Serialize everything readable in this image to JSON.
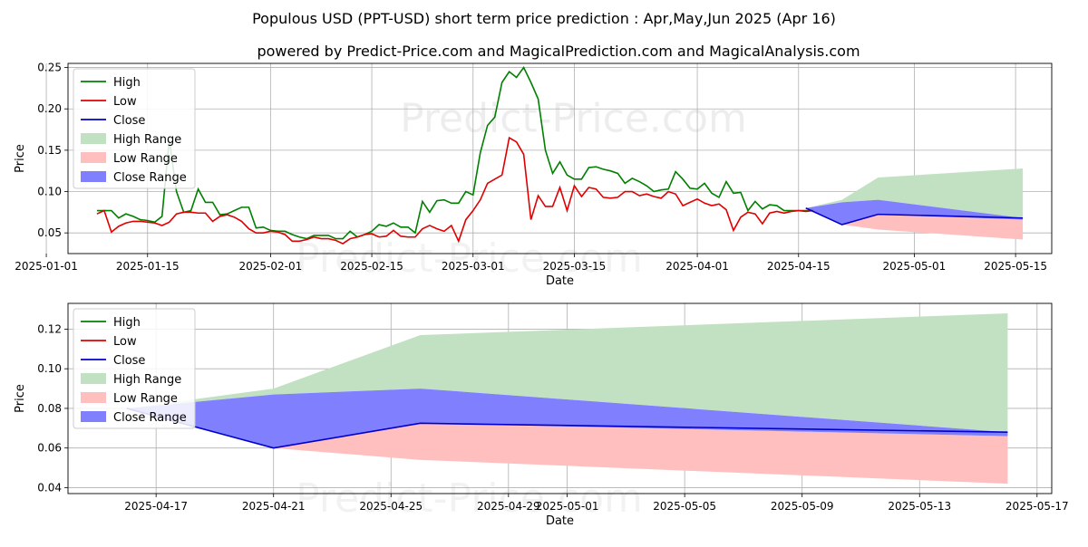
{
  "title": "Populous USD (PPT-USD) short term price prediction : Apr,May,Jun 2025 (Apr 16)",
  "subtitle": "powered by Predict-Price.com and MagicalPrediction.com and MagicalAnalysis.com",
  "watermark": "Predict-Price.com",
  "colors": {
    "high": "#008000",
    "low": "#e00000",
    "close": "#0000cc",
    "high_range": "#c2e1c2",
    "low_range": "#ffbfbf",
    "close_range": "#8080ff"
  },
  "chart_data": [
    {
      "type": "line",
      "xlabel": "Date",
      "ylabel": "Price",
      "grid": true,
      "legend_position": "upper-left",
      "legend": [
        "High",
        "Low",
        "Close",
        "High Range",
        "Low Range",
        "Close Range"
      ],
      "xlim": [
        "2025-01-04",
        "2025-05-20"
      ],
      "ylim": [
        0.025,
        0.255
      ],
      "x_ticks": [
        "2025-01-01",
        "2025-01-15",
        "2025-02-01",
        "2025-02-15",
        "2025-03-01",
        "2025-03-15",
        "2025-04-01",
        "2025-04-15",
        "2025-05-01",
        "2025-05-15"
      ],
      "y_ticks": [
        0.05,
        0.1,
        0.15,
        0.2,
        0.25
      ],
      "history_start": "2025-01-08",
      "history_high": [
        0.077,
        0.077,
        0.077,
        0.068,
        0.073,
        0.07,
        0.066,
        0.065,
        0.063,
        0.07,
        0.163,
        0.1,
        0.075,
        0.077,
        0.103,
        0.087,
        0.087,
        0.072,
        0.073,
        0.077,
        0.081,
        0.081,
        0.056,
        0.057,
        0.053,
        0.052,
        0.052,
        0.048,
        0.045,
        0.043,
        0.047,
        0.047,
        0.047,
        0.043,
        0.043,
        0.052,
        0.045,
        0.048,
        0.052,
        0.06,
        0.058,
        0.062,
        0.057,
        0.057,
        0.05,
        0.088,
        0.075,
        0.089,
        0.09,
        0.086,
        0.086,
        0.1,
        0.096,
        0.147,
        0.18,
        0.19,
        0.232,
        0.245,
        0.238,
        0.25,
        0.232,
        0.212,
        0.15,
        0.122,
        0.136,
        0.12,
        0.115,
        0.115,
        0.129,
        0.13,
        0.127,
        0.125,
        0.122,
        0.11,
        0.116,
        0.112,
        0.107,
        0.1,
        0.102,
        0.103,
        0.124,
        0.115,
        0.104,
        0.103,
        0.11,
        0.098,
        0.093,
        0.112,
        0.098,
        0.099,
        0.077,
        0.088,
        0.079,
        0.084,
        0.083,
        0.077,
        0.077,
        0.077,
        0.077,
        0.077
      ],
      "history_low": [
        0.073,
        0.077,
        0.051,
        0.058,
        0.062,
        0.064,
        0.064,
        0.063,
        0.062,
        0.059,
        0.063,
        0.073,
        0.075,
        0.075,
        0.074,
        0.074,
        0.064,
        0.07,
        0.072,
        0.069,
        0.064,
        0.055,
        0.05,
        0.05,
        0.052,
        0.051,
        0.048,
        0.04,
        0.04,
        0.042,
        0.045,
        0.043,
        0.043,
        0.041,
        0.037,
        0.043,
        0.045,
        0.048,
        0.049,
        0.045,
        0.046,
        0.053,
        0.046,
        0.045,
        0.045,
        0.055,
        0.059,
        0.055,
        0.052,
        0.059,
        0.04,
        0.066,
        0.077,
        0.09,
        0.11,
        0.115,
        0.12,
        0.165,
        0.16,
        0.145,
        0.066,
        0.095,
        0.082,
        0.082,
        0.105,
        0.077,
        0.107,
        0.094,
        0.105,
        0.103,
        0.093,
        0.092,
        0.093,
        0.1,
        0.1,
        0.095,
        0.097,
        0.094,
        0.092,
        0.1,
        0.097,
        0.083,
        0.087,
        0.091,
        0.086,
        0.083,
        0.085,
        0.078,
        0.053,
        0.069,
        0.075,
        0.073,
        0.061,
        0.074,
        0.076,
        0.074,
        0.076,
        0.077,
        0.076,
        0.077
      ]
    },
    {
      "type": "area",
      "xlabel": "Date",
      "ylabel": "Price",
      "grid": true,
      "legend_position": "upper-left",
      "legend": [
        "High",
        "Low",
        "Close",
        "High Range",
        "Low Range",
        "Close Range"
      ],
      "xlim": [
        "2025-04-14",
        "2025-05-17 12:00"
      ],
      "ylim": [
        0.037,
        0.133
      ],
      "x_ticks": [
        "2025-04-17",
        "2025-04-21",
        "2025-04-25",
        "2025-04-29",
        "2025-05-01",
        "2025-05-05",
        "2025-05-09",
        "2025-05-13",
        "2025-05-17"
      ],
      "y_ticks": [
        0.04,
        0.06,
        0.08,
        0.1,
        0.12
      ],
      "forecast": {
        "dates": [
          "2025-04-16",
          "2025-04-21",
          "2025-04-26",
          "2025-05-16"
        ],
        "close": [
          0.08,
          0.06,
          0.0725,
          0.068
        ],
        "high_range_upper": [
          0.08,
          0.09,
          0.117,
          0.128
        ],
        "high_range_lower": [
          0.08,
          0.087,
          0.09,
          0.068
        ],
        "low_range_upper": [
          0.08,
          0.062,
          0.0725,
          0.066
        ],
        "low_range_lower": [
          0.08,
          0.06,
          0.054,
          0.042
        ],
        "close_range_upper": [
          0.08,
          0.087,
          0.09,
          0.068
        ],
        "close_range_lower": [
          0.08,
          0.06,
          0.0725,
          0.066
        ]
      }
    }
  ]
}
